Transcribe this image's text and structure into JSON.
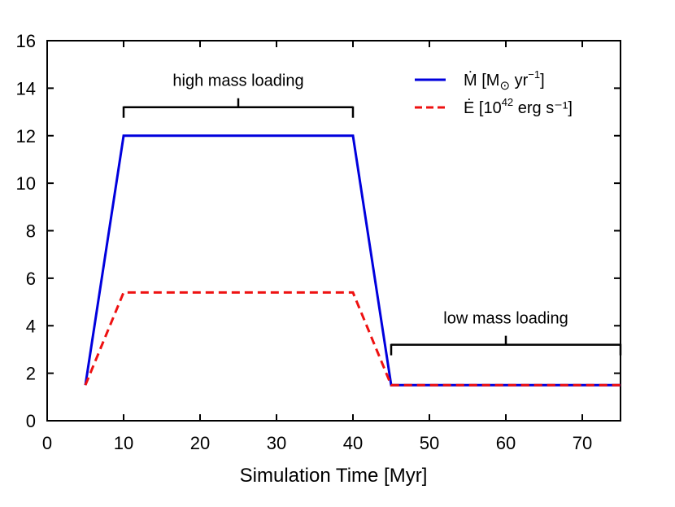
{
  "chart_data": {
    "type": "line",
    "title": "",
    "xlabel": "Simulation Time [Myr]",
    "ylabel": "",
    "xlim": [
      0,
      75
    ],
    "ylim": [
      0,
      16
    ],
    "xticks": [
      0,
      10,
      20,
      30,
      40,
      50,
      60,
      70
    ],
    "yticks": [
      0,
      2,
      4,
      6,
      8,
      10,
      12,
      14,
      16
    ],
    "grid": false,
    "legend_position": "top-right",
    "series": [
      {
        "name": "mass_rate",
        "legend_base": "Ṁ [M",
        "legend_sub": "⊙",
        "legend_mid": " yr",
        "legend_sup": "−1",
        "legend_end": "]",
        "color": "#0000dd",
        "style": "solid",
        "x": [
          5,
          10,
          40,
          45,
          75
        ],
        "y": [
          1.5,
          12.0,
          12.0,
          1.5,
          1.5
        ]
      },
      {
        "name": "energy_rate",
        "legend_base": "Ė [10",
        "legend_sub": "",
        "legend_mid": "",
        "legend_sup": "42",
        "legend_end": " erg s⁻¹]",
        "color": "#ee1111",
        "style": "dashed",
        "x": [
          5,
          10,
          40,
          45,
          75
        ],
        "y": [
          1.5,
          5.4,
          5.4,
          1.5,
          1.5
        ]
      }
    ],
    "annotations": [
      {
        "text": "high mass loading",
        "x_start": 10,
        "x_end": 40,
        "y": 13.2
      },
      {
        "text": "low mass loading",
        "x_start": 45,
        "x_end": 75,
        "y": 3.2
      }
    ]
  }
}
